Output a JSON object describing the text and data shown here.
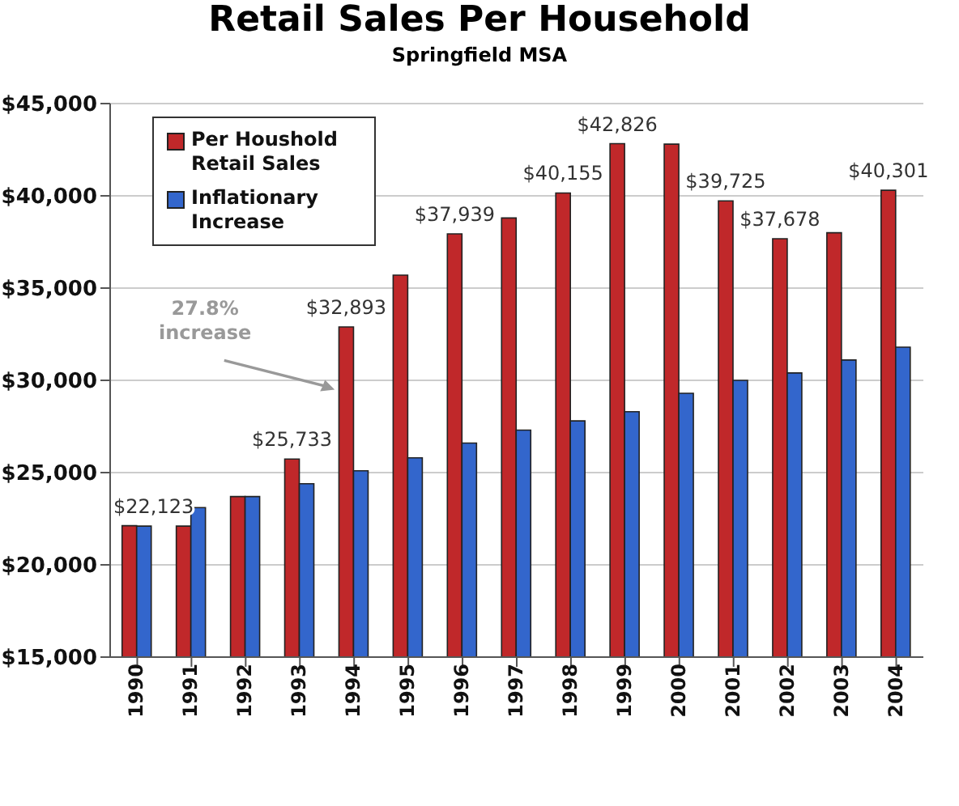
{
  "chart_data": {
    "type": "bar",
    "title": "Retail Sales Per Household",
    "subtitle": "Springfield MSA",
    "categories": [
      "1990",
      "1991",
      "1992",
      "1993",
      "1994",
      "1995",
      "1996",
      "1997",
      "1998",
      "1999",
      "2000",
      "2001",
      "2002",
      "2003",
      "2004"
    ],
    "series": [
      {
        "name": "Per Houshold Retail Sales",
        "color": "#c0282a",
        "values": [
          22123,
          22100,
          23700,
          25733,
          32893,
          35700,
          37939,
          38800,
          40155,
          42826,
          42800,
          39725,
          37678,
          38000,
          40301
        ],
        "value_labels": [
          "$22,123",
          null,
          null,
          "$25,733",
          "$32,893",
          null,
          "$37,939",
          null,
          "$40,155",
          "$42,826",
          null,
          "$39,725",
          "$37,678",
          null,
          "$40,301"
        ]
      },
      {
        "name": "Inflationary Increase",
        "color": "#3366cc",
        "values": [
          22100,
          23100,
          23700,
          24400,
          25100,
          25800,
          26600,
          27300,
          27800,
          28300,
          29300,
          30000,
          30400,
          31100,
          31800
        ]
      }
    ],
    "ylim": [
      15000,
      45000
    ],
    "yticks": [
      {
        "value": 15000,
        "label": "$15,000"
      },
      {
        "value": 20000,
        "label": "$20,000"
      },
      {
        "value": 25000,
        "label": "$25,000"
      },
      {
        "value": 30000,
        "label": "$30,000"
      },
      {
        "value": 35000,
        "label": "$35,000"
      },
      {
        "value": 40000,
        "label": "$40,000"
      },
      {
        "value": 45000,
        "label": "$45,000"
      }
    ],
    "grid": "y",
    "legend": "top left",
    "annotations": [
      "27.8% increase"
    ]
  }
}
